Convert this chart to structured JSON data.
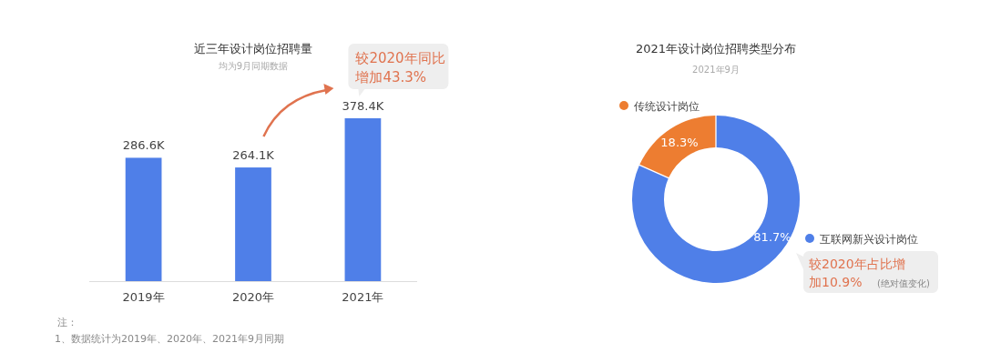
{
  "chart_data": [
    {
      "type": "bar",
      "title": "近三年设计岗位招聘量",
      "subtitle": "均为9月同期数据",
      "categories": [
        "2019年",
        "2020年",
        "2021年"
      ],
      "values": [
        286.6,
        264.1,
        378.4
      ],
      "value_labels": [
        "286.6K",
        "264.1K",
        "378.4K"
      ],
      "color": "#4f7fe8",
      "annotations": [
        {
          "text": "较2020年同比增加43.3%",
          "x": "2021年",
          "y": 378.4
        },
        "注：",
        "1、数据统计为2019年、2020年、2021年9月同期"
      ]
    },
    {
      "type": "donut",
      "title": "2021年设计岗位招聘类型分布",
      "subtitle": "2021年9月",
      "categories": [
        "传统设计岗位",
        "互联网新兴设计岗位"
      ],
      "values": [
        18.3,
        81.7
      ],
      "value_labels": [
        "18.3%",
        "81.7%"
      ],
      "colors": [
        "#ed7d31",
        "#4f7fe8"
      ],
      "legend": "top right",
      "annotations": [
        "较2020年占比增加10.9%",
        "(绝对值变化)"
      ]
    }
  ]
}
